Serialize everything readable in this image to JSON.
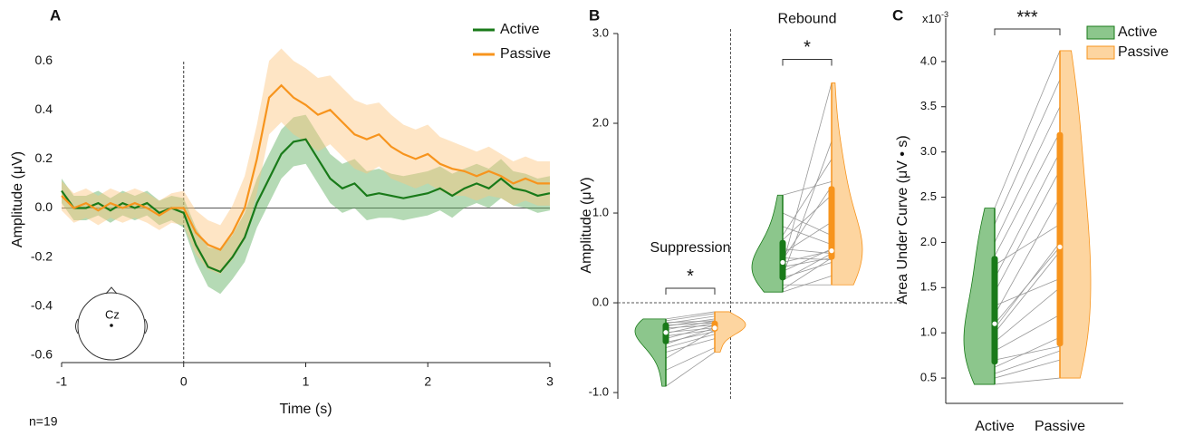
{
  "chart_data": [
    {
      "type": "line",
      "panel": "A",
      "note": "n=19",
      "electrode": "Cz",
      "x_label": "Time (s)",
      "y_label": "Amplitude (μV)",
      "xlim": [
        -1,
        3
      ],
      "ylim": [
        -0.63,
        0.7
      ],
      "xticks": [
        -1,
        0,
        1,
        2,
        3
      ],
      "yticks": [
        -0.6,
        -0.4,
        -0.2,
        {
          "value": 0,
          "label": "0.0"
        },
        0.2,
        0.4,
        0.6
      ],
      "legend": "top-right",
      "x": [
        -1.0,
        -0.9,
        -0.8,
        -0.7,
        -0.6,
        -0.5,
        -0.4,
        -0.3,
        -0.2,
        -0.1,
        0.0,
        0.1,
        0.2,
        0.3,
        0.4,
        0.5,
        0.6,
        0.7,
        0.8,
        0.9,
        1.0,
        1.1,
        1.2,
        1.3,
        1.4,
        1.5,
        1.6,
        1.7,
        1.8,
        1.9,
        2.0,
        2.1,
        2.2,
        2.3,
        2.4,
        2.5,
        2.6,
        2.7,
        2.8,
        2.9,
        3.0
      ],
      "series": [
        {
          "name": "Active",
          "color": "#197a19",
          "band_color": "#5aad5a",
          "values": [
            0.07,
            0.0,
            0.0,
            0.02,
            -0.01,
            0.02,
            0.0,
            0.02,
            -0.02,
            0.0,
            -0.02,
            -0.15,
            -0.24,
            -0.26,
            -0.2,
            -0.12,
            0.02,
            0.12,
            0.22,
            0.27,
            0.28,
            0.2,
            0.12,
            0.08,
            0.1,
            0.05,
            0.06,
            0.05,
            0.04,
            0.05,
            0.06,
            0.08,
            0.05,
            0.08,
            0.1,
            0.08,
            0.12,
            0.08,
            0.07,
            0.05,
            0.06
          ],
          "error": [
            0.05,
            0.05,
            0.05,
            0.05,
            0.05,
            0.05,
            0.05,
            0.05,
            0.05,
            0.05,
            0.06,
            0.07,
            0.08,
            0.09,
            0.09,
            0.1,
            0.1,
            0.1,
            0.1,
            0.1,
            0.1,
            0.1,
            0.1,
            0.1,
            0.1,
            0.1,
            0.1,
            0.09,
            0.09,
            0.09,
            0.09,
            0.09,
            0.09,
            0.08,
            0.08,
            0.08,
            0.08,
            0.07,
            0.07,
            0.07,
            0.07
          ]
        },
        {
          "name": "Passive",
          "color": "#f7941d",
          "band_color": "#fcc57e",
          "values": [
            0.05,
            0.0,
            0.02,
            -0.01,
            0.02,
            0.0,
            0.02,
            0.0,
            -0.03,
            0.0,
            0.0,
            -0.1,
            -0.15,
            -0.17,
            -0.1,
            0.0,
            0.2,
            0.45,
            0.5,
            0.45,
            0.42,
            0.38,
            0.4,
            0.35,
            0.3,
            0.28,
            0.3,
            0.25,
            0.22,
            0.2,
            0.22,
            0.18,
            0.16,
            0.15,
            0.13,
            0.15,
            0.13,
            0.1,
            0.12,
            0.1,
            0.1
          ],
          "error": [
            0.06,
            0.06,
            0.06,
            0.06,
            0.06,
            0.06,
            0.06,
            0.06,
            0.06,
            0.06,
            0.07,
            0.09,
            0.1,
            0.1,
            0.11,
            0.13,
            0.14,
            0.15,
            0.15,
            0.15,
            0.15,
            0.15,
            0.14,
            0.14,
            0.14,
            0.14,
            0.13,
            0.13,
            0.12,
            0.12,
            0.12,
            0.11,
            0.11,
            0.1,
            0.1,
            0.1,
            0.09,
            0.09,
            0.09,
            0.09,
            0.09
          ]
        }
      ]
    },
    {
      "type": "violin",
      "panel": "B",
      "y_label": "Amplitude (μV)",
      "zero_line": true,
      "ylim": [
        -1.07,
        3.0
      ],
      "yticks": [
        {
          "value": -1,
          "label": "-1.0"
        },
        {
          "value": 0,
          "label": "0.0"
        },
        {
          "value": 1,
          "label": "1.0"
        },
        {
          "value": 2,
          "label": "2.0"
        },
        {
          "value": 3,
          "label": "3.0"
        }
      ],
      "groups": [
        {
          "name": "Suppression",
          "significance": "*",
          "series": [
            {
              "name": "Active",
              "color": "#197a19",
              "fill": "#8cc68c",
              "median": -0.33,
              "q1": -0.46,
              "q3": -0.22,
              "values": [
                -0.93,
                -0.75,
                -0.62,
                -0.55,
                -0.5,
                -0.46,
                -0.44,
                -0.4,
                -0.37,
                -0.34,
                -0.33,
                -0.3,
                -0.28,
                -0.26,
                -0.25,
                -0.23,
                -0.22,
                -0.2,
                -0.18
              ]
            },
            {
              "name": "Passive",
              "color": "#f7941d",
              "fill": "#fdd5a0",
              "median": -0.28,
              "q1": -0.32,
              "q3": -0.2,
              "values": [
                -0.55,
                -0.5,
                -0.3,
                -0.4,
                -0.35,
                -0.28,
                -0.32,
                -0.25,
                -0.3,
                -0.22,
                -0.28,
                -0.2,
                -0.25,
                -0.18,
                -0.22,
                -0.15,
                -0.2,
                -0.12,
                -0.1
              ]
            }
          ]
        },
        {
          "name": "Rebound",
          "significance": "*",
          "series": [
            {
              "name": "Active",
              "color": "#197a19",
              "fill": "#8cc68c",
              "median": 0.45,
              "q1": 0.25,
              "q3": 0.7,
              "values": [
                0.12,
                0.15,
                0.2,
                0.25,
                0.28,
                0.3,
                0.35,
                0.4,
                0.42,
                0.45,
                0.48,
                0.5,
                0.55,
                0.6,
                0.7,
                0.75,
                0.85,
                1.0,
                1.2
              ]
            },
            {
              "name": "Passive",
              "color": "#f7941d",
              "fill": "#fdd5a0",
              "median": 0.58,
              "q1": 0.48,
              "q3": 1.3,
              "values": [
                0.3,
                0.5,
                0.2,
                0.55,
                0.45,
                1.8,
                0.6,
                0.5,
                2.45,
                0.58,
                1.3,
                0.48,
                0.9,
                0.55,
                1.2,
                1.6,
                0.65,
                0.75,
                1.35
              ]
            }
          ]
        }
      ]
    },
    {
      "type": "violin",
      "panel": "C",
      "y_label": "Area Under Curve (μV • s)",
      "scale_base": "x10",
      "scale_exp": "-3",
      "ylim": [
        0.22,
        4.48
      ],
      "legend": "top-right",
      "yticks": [
        0.5,
        {
          "value": 1,
          "label": "1.0"
        },
        1.5,
        {
          "value": 2,
          "label": "2.0"
        },
        2.5,
        {
          "value": 3,
          "label": "3.0"
        },
        3.5,
        {
          "value": 4,
          "label": "4.0"
        }
      ],
      "categories": [
        "Active",
        "Passive"
      ],
      "groups": [
        {
          "significance": "***",
          "series": [
            {
              "name": "Active",
              "color": "#197a19",
              "fill": "#8cc68c",
              "median": 1.1,
              "q1": 0.65,
              "q3": 1.85,
              "values": [
                0.43,
                0.5,
                0.55,
                0.62,
                0.7,
                0.8,
                0.9,
                1.0,
                1.05,
                1.1,
                1.2,
                1.3,
                1.45,
                1.6,
                1.75,
                1.85,
                2.0,
                2.2,
                2.38
              ]
            },
            {
              "name": "Passive",
              "color": "#f7941d",
              "fill": "#fdd5a0",
              "median": 1.95,
              "q1": 0.85,
              "q3": 3.22,
              "values": [
                0.5,
                0.7,
                0.8,
                0.95,
                0.85,
                1.2,
                1.5,
                1.9,
                2.0,
                1.95,
                2.5,
                1.6,
                2.8,
                3.0,
                2.2,
                3.22,
                3.5,
                3.8,
                4.12
              ]
            }
          ]
        }
      ]
    }
  ]
}
